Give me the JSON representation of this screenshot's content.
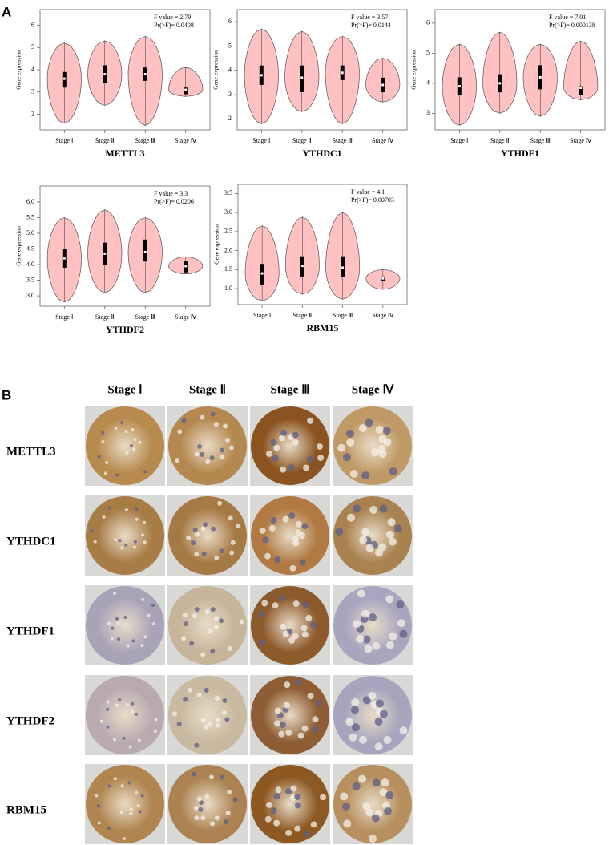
{
  "panel_labels": [
    "A",
    "B"
  ],
  "chart_data": [
    {
      "type": "violin",
      "title": "METTL3",
      "y_label": "Gene expression",
      "annotations": [
        "F value = 2.79",
        "Pr(>F)= 0.0408"
      ],
      "categories": [
        "Stage Ⅰ",
        "Stage Ⅱ",
        "Stage Ⅲ",
        "Stage Ⅳ"
      ],
      "ylim": [
        1.3,
        6.7
      ],
      "yticks": [
        2,
        3,
        4,
        5,
        6
      ],
      "color": "#ffc1c1",
      "violins": [
        {
          "min": 1.6,
          "q1": 3.2,
          "median": 3.6,
          "q3": 3.9,
          "max": 5.2
        },
        {
          "min": 2.4,
          "q1": 3.4,
          "median": 3.8,
          "q3": 4.2,
          "max": 5.3
        },
        {
          "min": 1.5,
          "q1": 3.5,
          "median": 3.8,
          "q3": 4.1,
          "max": 5.5
        },
        {
          "min": 2.8,
          "q1": 2.9,
          "median": 3.1,
          "q3": 3.2,
          "max": 4.1
        }
      ]
    },
    {
      "type": "violin",
      "title": "YTHDC1",
      "y_label": "Gene expression",
      "annotations": [
        "F value = 3.57",
        "Pr(>F)= 0.0144"
      ],
      "categories": [
        "Stage Ⅰ",
        "Stage Ⅱ",
        "Stage Ⅲ",
        "Stage Ⅳ"
      ],
      "ylim": [
        1.55,
        6.5
      ],
      "yticks": [
        2,
        3,
        4,
        5,
        6
      ],
      "color": "#ffc1c1",
      "violins": [
        {
          "min": 1.8,
          "q1": 3.4,
          "median": 3.8,
          "q3": 4.2,
          "max": 5.7
        },
        {
          "min": 2.3,
          "q1": 3.1,
          "median": 3.7,
          "q3": 4.2,
          "max": 5.6
        },
        {
          "min": 1.8,
          "q1": 3.6,
          "median": 3.9,
          "q3": 4.2,
          "max": 5.4
        },
        {
          "min": 2.7,
          "q1": 3.1,
          "median": 3.4,
          "q3": 3.7,
          "max": 4.5
        }
      ]
    },
    {
      "type": "violin",
      "title": "YTHDF1",
      "y_label": "Gene expression",
      "annotations": [
        "F value = 7.01",
        "Pr(>F)= 0.000138"
      ],
      "categories": [
        "Stage Ⅰ",
        "Stage Ⅱ",
        "Stage Ⅲ",
        "Stage Ⅳ"
      ],
      "ylim": [
        2.45,
        6.45
      ],
      "yticks": [
        3,
        4,
        5,
        6
      ],
      "color": "#ffc1c1",
      "violins": [
        {
          "min": 2.6,
          "q1": 3.6,
          "median": 3.9,
          "q3": 4.2,
          "max": 5.3
        },
        {
          "min": 3.0,
          "q1": 3.7,
          "median": 4.0,
          "q3": 4.3,
          "max": 5.7
        },
        {
          "min": 2.9,
          "q1": 3.8,
          "median": 4.2,
          "q3": 4.6,
          "max": 5.3
        },
        {
          "min": 3.45,
          "q1": 3.6,
          "median": 3.85,
          "q3": 3.9,
          "max": 5.4
        }
      ]
    },
    {
      "type": "violin",
      "title": "YTHDF2",
      "y_label": "Gene expression",
      "annotations": [
        "F value = 3.3",
        "Pr(>F)= 0.0206"
      ],
      "categories": [
        "Stage Ⅰ",
        "Stage Ⅱ",
        "Stage Ⅲ",
        "Stage Ⅳ"
      ],
      "ylim": [
        2.67,
        6.51
      ],
      "yticks": [
        {
          "value": 3,
          "label": "3.0"
        },
        3.5,
        {
          "value": 4,
          "label": "4.0"
        },
        4.5,
        {
          "value": 5,
          "label": "5.0"
        },
        5.5,
        {
          "value": 6,
          "label": "6.0"
        }
      ],
      "color": "#ffc1c1",
      "violins": [
        {
          "min": 2.8,
          "q1": 3.9,
          "median": 4.2,
          "q3": 4.5,
          "max": 5.5
        },
        {
          "min": 3.1,
          "q1": 4.0,
          "median": 4.35,
          "q3": 4.7,
          "max": 5.75
        },
        {
          "min": 3.1,
          "q1": 4.1,
          "median": 4.4,
          "q3": 4.8,
          "max": 5.5
        },
        {
          "min": 3.7,
          "q1": 3.75,
          "median": 3.95,
          "q3": 4.1,
          "max": 4.25
        }
      ]
    },
    {
      "type": "violin",
      "title": "RBM15",
      "y_label": "Gene expression",
      "annotations": [
        "F value = 4.1",
        "Pr(>F)= 0.00703"
      ],
      "categories": [
        "Stage Ⅰ",
        "Stage Ⅱ",
        "Stage Ⅲ",
        "Stage Ⅳ"
      ],
      "ylim": [
        0.58,
        3.74
      ],
      "yticks": [
        {
          "value": 1,
          "label": "1.0"
        },
        1.5,
        {
          "value": 2,
          "label": "2.0"
        },
        2.5,
        {
          "value": 3,
          "label": "3.0"
        },
        3.5
      ],
      "color": "#ffc1c1",
      "violins": [
        {
          "min": 0.68,
          "q1": 1.1,
          "median": 1.4,
          "q3": 1.65,
          "max": 2.65
        },
        {
          "min": 0.85,
          "q1": 1.3,
          "median": 1.6,
          "q3": 1.85,
          "max": 2.88
        },
        {
          "min": 0.72,
          "q1": 1.3,
          "median": 1.55,
          "q3": 1.85,
          "max": 3.0
        },
        {
          "min": 0.98,
          "q1": 1.2,
          "median": 1.27,
          "q3": 1.32,
          "max": 1.5
        }
      ]
    }
  ],
  "ihc": {
    "columns": [
      "Stage Ⅰ",
      "Stage Ⅱ",
      "Stage Ⅲ",
      "Stage Ⅳ"
    ],
    "rows": [
      "METTL3",
      "YTHDC1",
      "YTHDF1",
      "YTHDF2",
      "RBM15"
    ]
  }
}
